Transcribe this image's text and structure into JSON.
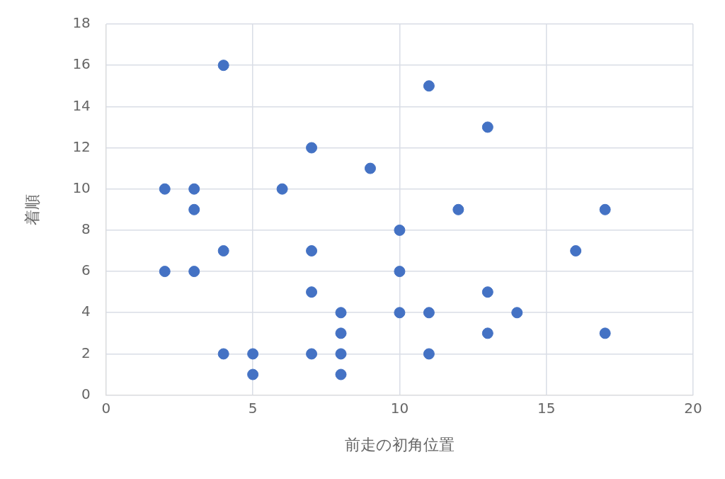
{
  "chart_data": {
    "type": "scatter",
    "xlabel": "前走の初角位置",
    "ylabel": "着順",
    "x": [
      4,
      11,
      13,
      7,
      9,
      2,
      3,
      6,
      3,
      12,
      17,
      10,
      4,
      7,
      16,
      2,
      3,
      10,
      7,
      13,
      8,
      10,
      11,
      14,
      8,
      13,
      17,
      4,
      5,
      7,
      8,
      11,
      5,
      8
    ],
    "series": [
      {
        "color": "#4472c4",
        "values": [
          16,
          15,
          13,
          12,
          11,
          10,
          10,
          10,
          9,
          9,
          9,
          8,
          7,
          7,
          7,
          6,
          6,
          6,
          5,
          5,
          4,
          4,
          4,
          4,
          3,
          3,
          3,
          2,
          2,
          2,
          2,
          2,
          1,
          1
        ]
      }
    ],
    "xlim": [
      0,
      20
    ],
    "xticks": [
      0,
      5,
      10,
      15,
      20
    ],
    "ylim": [
      0,
      18
    ],
    "yticks": [
      0,
      2,
      4,
      6,
      8,
      10,
      12,
      14,
      16,
      18
    ],
    "grid": true,
    "marker": "circle",
    "legend": false
  }
}
